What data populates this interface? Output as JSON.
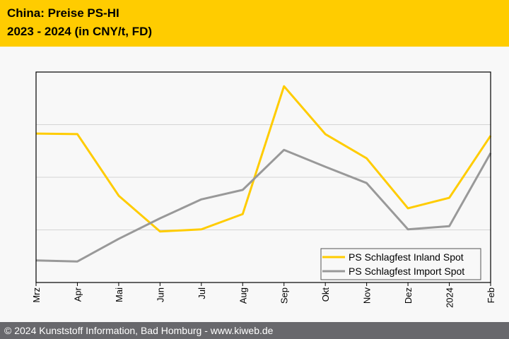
{
  "header": {
    "title_line1": "China: Preise PS-HI",
    "title_line2": "2023 - 2024 (in CNY/t, FD)"
  },
  "footer": {
    "text": "© 2024 Kunststoff Information, Bad Homburg - www.kiweb.de"
  },
  "chart_data": {
    "type": "line",
    "title": "China: Preise PS-HI 2023 - 2024 (in CNY/t, FD)",
    "xlabel": "",
    "ylabel": "",
    "note": "y-axis unlabeled; values in relative units (gridline spacing = 1)",
    "ylim": [
      0,
      4
    ],
    "categories": [
      "Mrz",
      "Apr",
      "Mai",
      "Jun",
      "Jul",
      "Aug",
      "Sep",
      "Okt",
      "Nov",
      "Dez",
      "2024",
      "Feb"
    ],
    "grid": true,
    "legend_position": "bottom-right",
    "series": [
      {
        "name": "PS Schlagfest Inland Spot",
        "color": "#ffcc00",
        "values": [
          2.83,
          2.82,
          1.65,
          0.97,
          1.01,
          1.3,
          3.73,
          2.82,
          2.36,
          1.41,
          1.61,
          2.79
        ]
      },
      {
        "name": "PS Schlagfest Import Spot",
        "color": "#999999",
        "values": [
          0.42,
          0.4,
          0.83,
          1.22,
          1.58,
          1.76,
          2.52,
          2.2,
          1.89,
          1.01,
          1.07,
          2.46
        ]
      }
    ]
  }
}
